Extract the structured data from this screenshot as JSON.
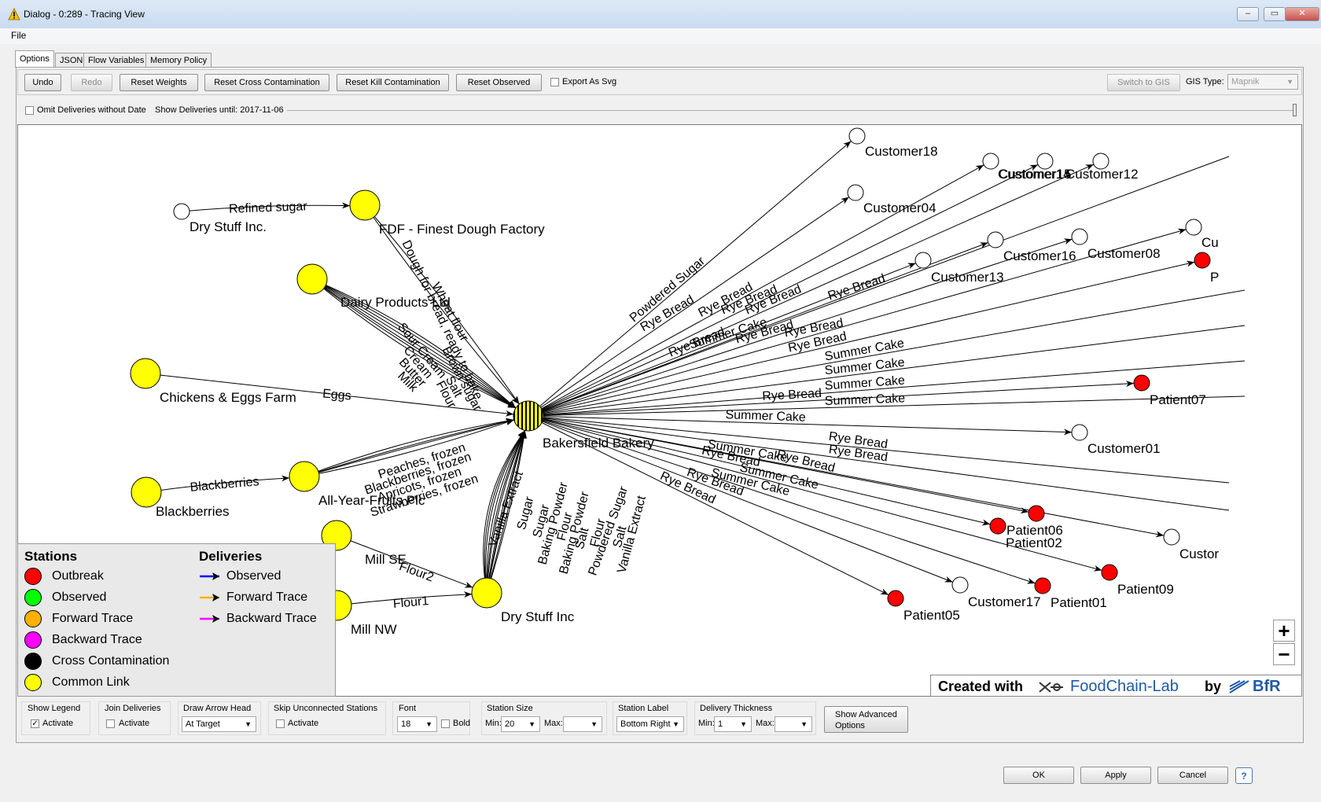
{
  "window": {
    "title": "Dialog - 0:289 - Tracing View",
    "minimize": "–",
    "maximize": "▭",
    "close": "✕"
  },
  "menu": {
    "file": "File"
  },
  "tabs": [
    "Options",
    "JSON",
    "Flow Variables",
    "Memory Policy"
  ],
  "toolbar": {
    "undo": "Undo",
    "redo": "Redo",
    "reset_weights": "Reset Weights",
    "reset_cross": "Reset Cross Contamination",
    "reset_kill": "Reset Kill Contamination",
    "reset_observed": "Reset Observed",
    "export_svg": "Export As Svg",
    "switch_gis": "Switch to GIS",
    "gis_type_label": "GIS Type:",
    "gis_type_value": "Mapnik"
  },
  "date_filter": {
    "omit_label": "Omit Deliveries without Date",
    "show_until": "Show Deliveries until: 2017-11-06"
  },
  "legend": {
    "stations_title": "Stations",
    "deliveries_title": "Deliveries",
    "stations": [
      {
        "label": "Outbreak",
        "color": "#ff0000"
      },
      {
        "label": "Observed",
        "color": "#00ff00"
      },
      {
        "label": "Forward Trace",
        "color": "#ffb000"
      },
      {
        "label": "Backward Trace",
        "color": "#ff00ff"
      },
      {
        "label": "Cross Contamination",
        "color": "#000000"
      },
      {
        "label": "Common Link",
        "color": "#ffff00"
      }
    ],
    "deliveries": [
      {
        "label": "Observed",
        "color": "#0000ff"
      },
      {
        "label": "Forward Trace",
        "color": "#ffb000"
      },
      {
        "label": "Backward Trace",
        "color": "#ff00ff"
      }
    ]
  },
  "graph": {
    "stations": [
      {
        "name": "Dry Stuff Inc.",
        "kind": "customer"
      },
      {
        "name": "FDF - Finest Dough Factory",
        "kind": "common"
      },
      {
        "name": "Dairy Products Ltd",
        "kind": "common"
      },
      {
        "name": "Chickens & Eggs Farm",
        "kind": "common"
      },
      {
        "name": "Blackberries",
        "kind": "common"
      },
      {
        "name": "All-Year-Fruits Plc",
        "kind": "common"
      },
      {
        "name": "Mill SE",
        "kind": "common"
      },
      {
        "name": "Mill NW",
        "kind": "common"
      },
      {
        "name": "Dry Stuff Inc",
        "kind": "common"
      },
      {
        "name": "Bakersfield Bakery",
        "kind": "cross"
      },
      {
        "name": "Customer18",
        "kind": "customer"
      },
      {
        "name": "Customer04",
        "kind": "customer"
      },
      {
        "name": "Customer14",
        "kind": "customer"
      },
      {
        "name": "Customer12",
        "kind": "customer"
      },
      {
        "name": "Customer15",
        "kind": "customer"
      },
      {
        "name": "Customer16",
        "kind": "customer"
      },
      {
        "name": "Customer08",
        "kind": "customer"
      },
      {
        "name": "Customer13",
        "kind": "customer"
      },
      {
        "name": "Customer01",
        "kind": "customer"
      },
      {
        "name": "Customer17",
        "kind": "customer"
      },
      {
        "name": "Custor",
        "kind": "customer"
      },
      {
        "name": "Cu",
        "kind": "customer"
      },
      {
        "name": "Patient07",
        "kind": "outbreak"
      },
      {
        "name": "Patient06",
        "kind": "outbreak"
      },
      {
        "name": "Patient02",
        "kind": "outbreak"
      },
      {
        "name": "Patient09",
        "kind": "outbreak"
      },
      {
        "name": "Patient01",
        "kind": "outbreak"
      },
      {
        "name": "Patient05",
        "kind": "outbreak"
      },
      {
        "name": "P",
        "kind": "outbreak"
      }
    ],
    "deliveries": [
      "Refined sugar",
      "Eggs",
      "Blackberries",
      "Flour2",
      "Flour1",
      "Dough for bread, ready to bake",
      "Wheat flour",
      "Sour Cream",
      "Cream",
      "Butter",
      "Milk",
      "Brown sugar",
      "Salt",
      "Flour",
      "Peaches, frozen",
      "Blackberries, frozen",
      "Apricots, frozen",
      "Strawberries, frozen",
      "Vanilla Extract",
      "Sugar",
      "Sugar",
      "Baking Powder",
      "Flour",
      "Baking Powder",
      "Salt",
      "Flour",
      "Powdered Sugar",
      "Salt",
      "Vanilla Extract",
      "Powdered Sugar",
      "Rye Bread",
      "Rye Bread",
      "Rye Bread",
      "Rye Bread",
      "Rye Bread",
      "Summer Cake",
      "Rye Bread",
      "Rye Bread",
      "Rye Bread",
      "Rye Bread",
      "Summer Cake",
      "Summer Cake",
      "Rye Bread",
      "Summer Cake",
      "Summer Cake",
      "Rye Bread",
      "Rye Bread",
      "Rye Bread",
      "Rye Bread",
      "Summer Cake",
      "Summer Cake",
      "Summer Cake",
      "Summer Cake",
      "Rye Bread",
      "Rye Bread",
      "Summer Cake",
      "Summer Cake",
      "Rye Bread",
      "Summer Cake",
      "Rye Bread"
    ]
  },
  "zoom": {
    "in": "+",
    "out": "−"
  },
  "credit": {
    "created": "Created with",
    "app": "FoodChain-Lab",
    "by": "by",
    "org": "BfR"
  },
  "settings": {
    "show_legend": {
      "title": "Show Legend",
      "label": "Activate",
      "checked": "✓"
    },
    "join_deliveries": {
      "title": "Join Deliveries",
      "label": "Activate"
    },
    "arrow_head": {
      "title": "Draw Arrow Head",
      "value": "At Target"
    },
    "skip_unconnected": {
      "title": "Skip Unconnected Stations",
      "label": "Activate"
    },
    "font": {
      "title": "Font",
      "value": "18",
      "bold": "Bold"
    },
    "station_size": {
      "title": "Station Size",
      "min_label": "Min:",
      "min": "20",
      "max_label": "Max:",
      "max": ""
    },
    "station_label": {
      "title": "Station Label",
      "value": "Bottom Right"
    },
    "delivery_thickness": {
      "title": "Delivery Thickness",
      "min_label": "Min:",
      "min": "1",
      "max_label": "Max:",
      "max": ""
    },
    "advanced": "Show Advanced Options"
  },
  "dialog": {
    "ok": "OK",
    "apply": "Apply",
    "cancel": "Cancel",
    "help": "?"
  }
}
